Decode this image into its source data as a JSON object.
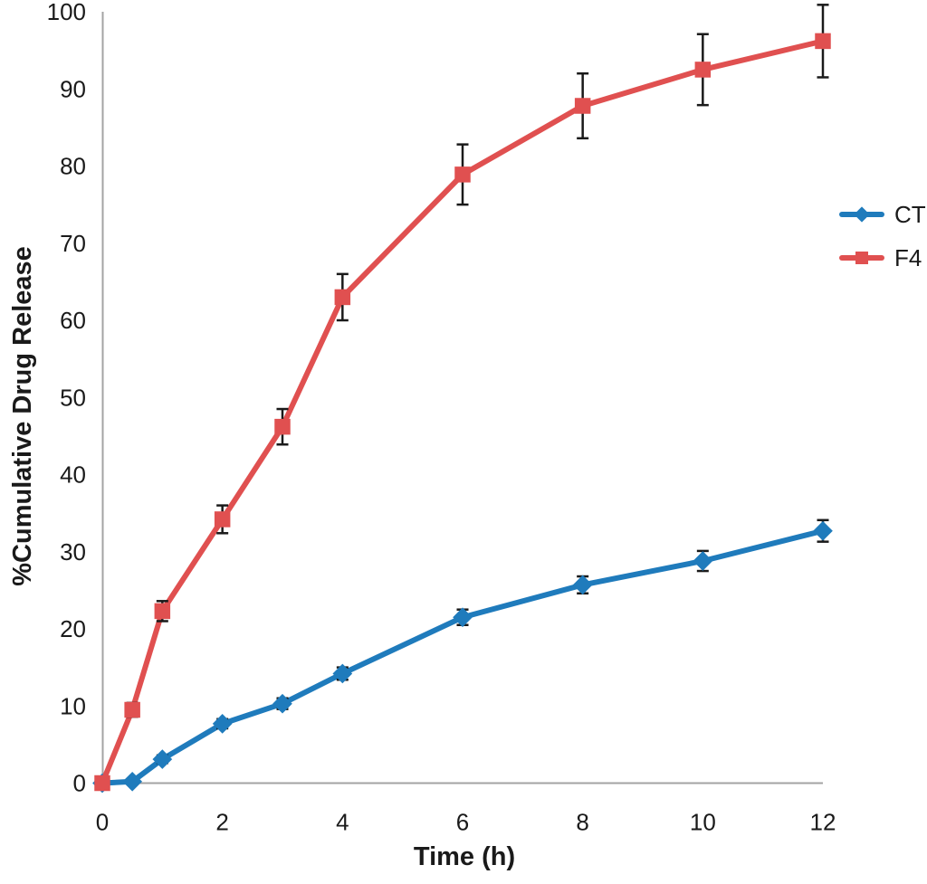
{
  "figure": {
    "background": "#ffffff"
  },
  "chart_data": {
    "type": "line",
    "title": "",
    "xlabel": "Time (h)",
    "ylabel": "%Cumulative  Drug Release",
    "xlim": [
      0,
      12
    ],
    "ylim": [
      0,
      100
    ],
    "x_ticks": [
      0,
      2,
      4,
      6,
      8,
      10,
      12
    ],
    "y_ticks": [
      0,
      10,
      20,
      30,
      40,
      50,
      60,
      70,
      80,
      90,
      100
    ],
    "grid": false,
    "legend_position": "right",
    "axis_color": "#a3a3a3",
    "error_bar_color": "#1a1a1a",
    "x": [
      0,
      0.5,
      1,
      2,
      3,
      4,
      6,
      8,
      10,
      12
    ],
    "series": [
      {
        "name": "CT",
        "color": "#1f7bbc",
        "marker": "diamond",
        "values": [
          0,
          0.2,
          3.1,
          7.7,
          10.3,
          14.2,
          21.5,
          25.7,
          28.8,
          32.7
        ],
        "errors": [
          0,
          0.3,
          0.5,
          0.6,
          0.7,
          0.8,
          1.0,
          1.1,
          1.3,
          1.4
        ]
      },
      {
        "name": "F4",
        "color": "#e05050",
        "marker": "square",
        "values": [
          0,
          9.5,
          22.3,
          34.2,
          46.2,
          63.0,
          78.9,
          87.8,
          92.5,
          96.2
        ],
        "errors": [
          0,
          0.9,
          1.3,
          1.8,
          2.3,
          3.0,
          3.9,
          4.2,
          4.6,
          4.7
        ]
      }
    ]
  }
}
